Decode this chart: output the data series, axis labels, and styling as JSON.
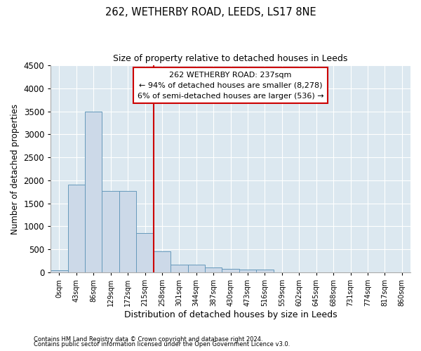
{
  "title1": "262, WETHERBY ROAD, LEEDS, LS17 8NE",
  "title2": "Size of property relative to detached houses in Leeds",
  "xlabel": "Distribution of detached houses by size in Leeds",
  "ylabel": "Number of detached properties",
  "bar_color": "#ccd9e8",
  "bar_edge_color": "#6699bb",
  "background_color": "#dce8f0",
  "categories": [
    "0sqm",
    "43sqm",
    "86sqm",
    "129sqm",
    "172sqm",
    "215sqm",
    "258sqm",
    "301sqm",
    "344sqm",
    "387sqm",
    "430sqm",
    "473sqm",
    "516sqm",
    "559sqm",
    "602sqm",
    "645sqm",
    "688sqm",
    "731sqm",
    "774sqm",
    "817sqm",
    "860sqm"
  ],
  "values": [
    50,
    1900,
    3500,
    1775,
    1775,
    850,
    460,
    175,
    175,
    100,
    70,
    65,
    65,
    5,
    5,
    3,
    2,
    2,
    1,
    1,
    1
  ],
  "ylim": [
    0,
    4500
  ],
  "yticks": [
    0,
    500,
    1000,
    1500,
    2000,
    2500,
    3000,
    3500,
    4000,
    4500
  ],
  "red_line_x": 5.53,
  "annotation_line1": "262 WETHERBY ROAD: 237sqm",
  "annotation_line2": "← 94% of detached houses are smaller (8,278)",
  "annotation_line3": "6% of semi-detached houses are larger (536) →",
  "vline_color": "#cc0000",
  "annotation_box_color": "#cc0000",
  "footer1": "Contains HM Land Registry data © Crown copyright and database right 2024.",
  "footer2": "Contains public sector information licensed under the Open Government Licence v3.0."
}
